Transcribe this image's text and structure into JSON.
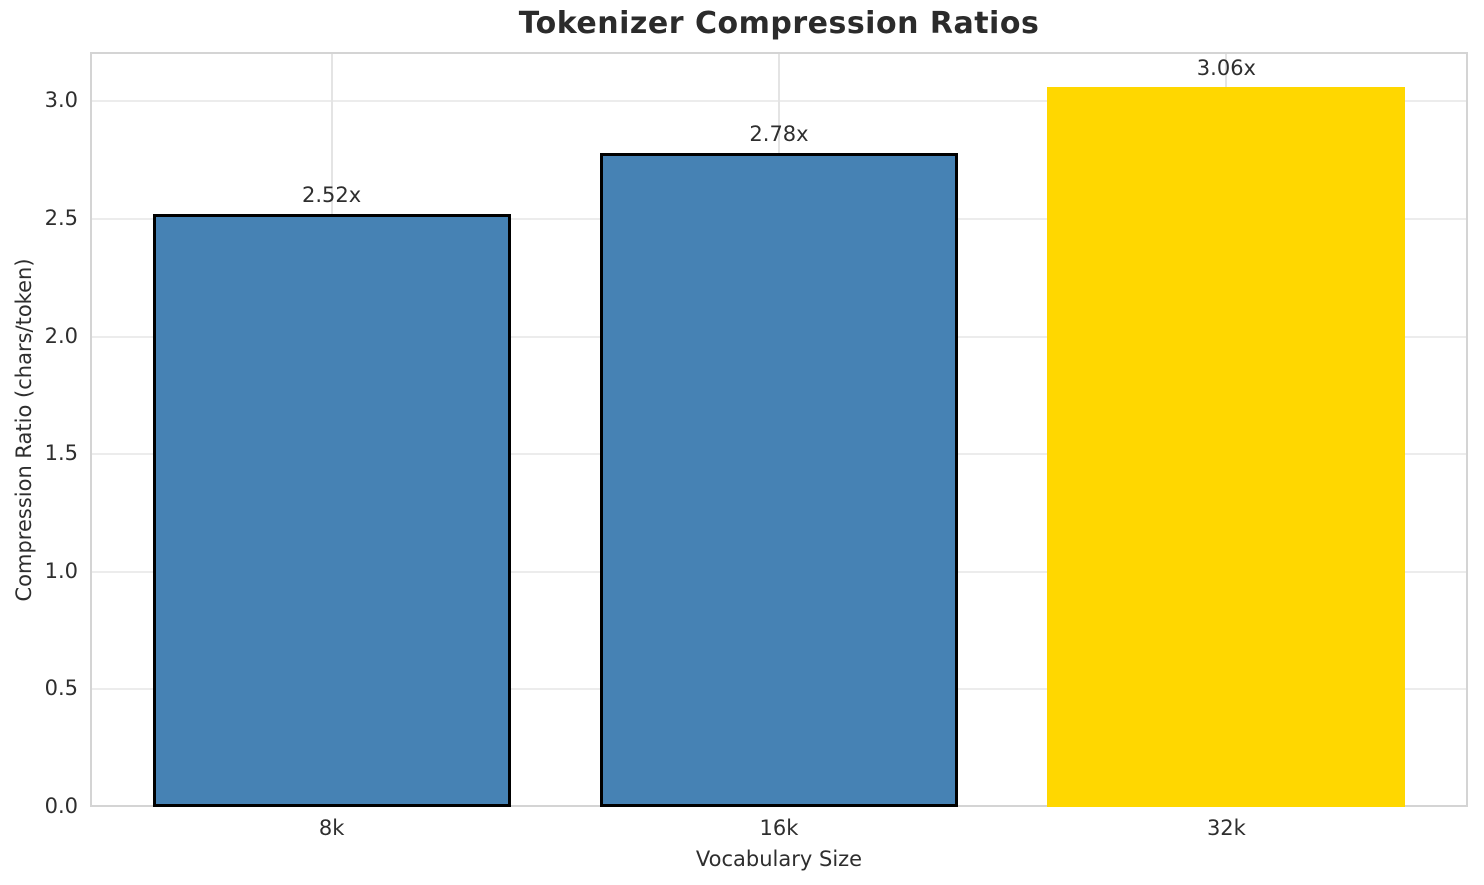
{
  "chart_data": {
    "type": "bar",
    "title": "Tokenizer Compression Ratios",
    "xlabel": "Vocabulary Size",
    "ylabel": "Compression Ratio (chars/token)",
    "categories": [
      "8k",
      "16k",
      "32k"
    ],
    "values": [
      2.52,
      2.78,
      3.06
    ],
    "bar_labels": [
      "2.52x",
      "2.78x",
      "3.06x"
    ],
    "bar_colors": [
      "#4682b4",
      "#4682b4",
      "#ffd700"
    ],
    "bar_edge_colors": [
      "#000000",
      "#000000",
      "#ffd700"
    ],
    "ylim": [
      0,
      3.21
    ],
    "ytick_labels": [
      "0.0",
      "0.5",
      "1.0",
      "1.5",
      "2.0",
      "2.5",
      "3.0"
    ],
    "ytick_values": [
      0,
      0.5,
      1.0,
      1.5,
      2.0,
      2.5,
      3.0
    ],
    "grid": "both",
    "grid_color": "#ececec",
    "spine_color": "#d4d4d4",
    "legend": "none",
    "bar_width_fraction": 0.8,
    "x_span_units": 3.08,
    "x_first_center_units": 0.54
  }
}
